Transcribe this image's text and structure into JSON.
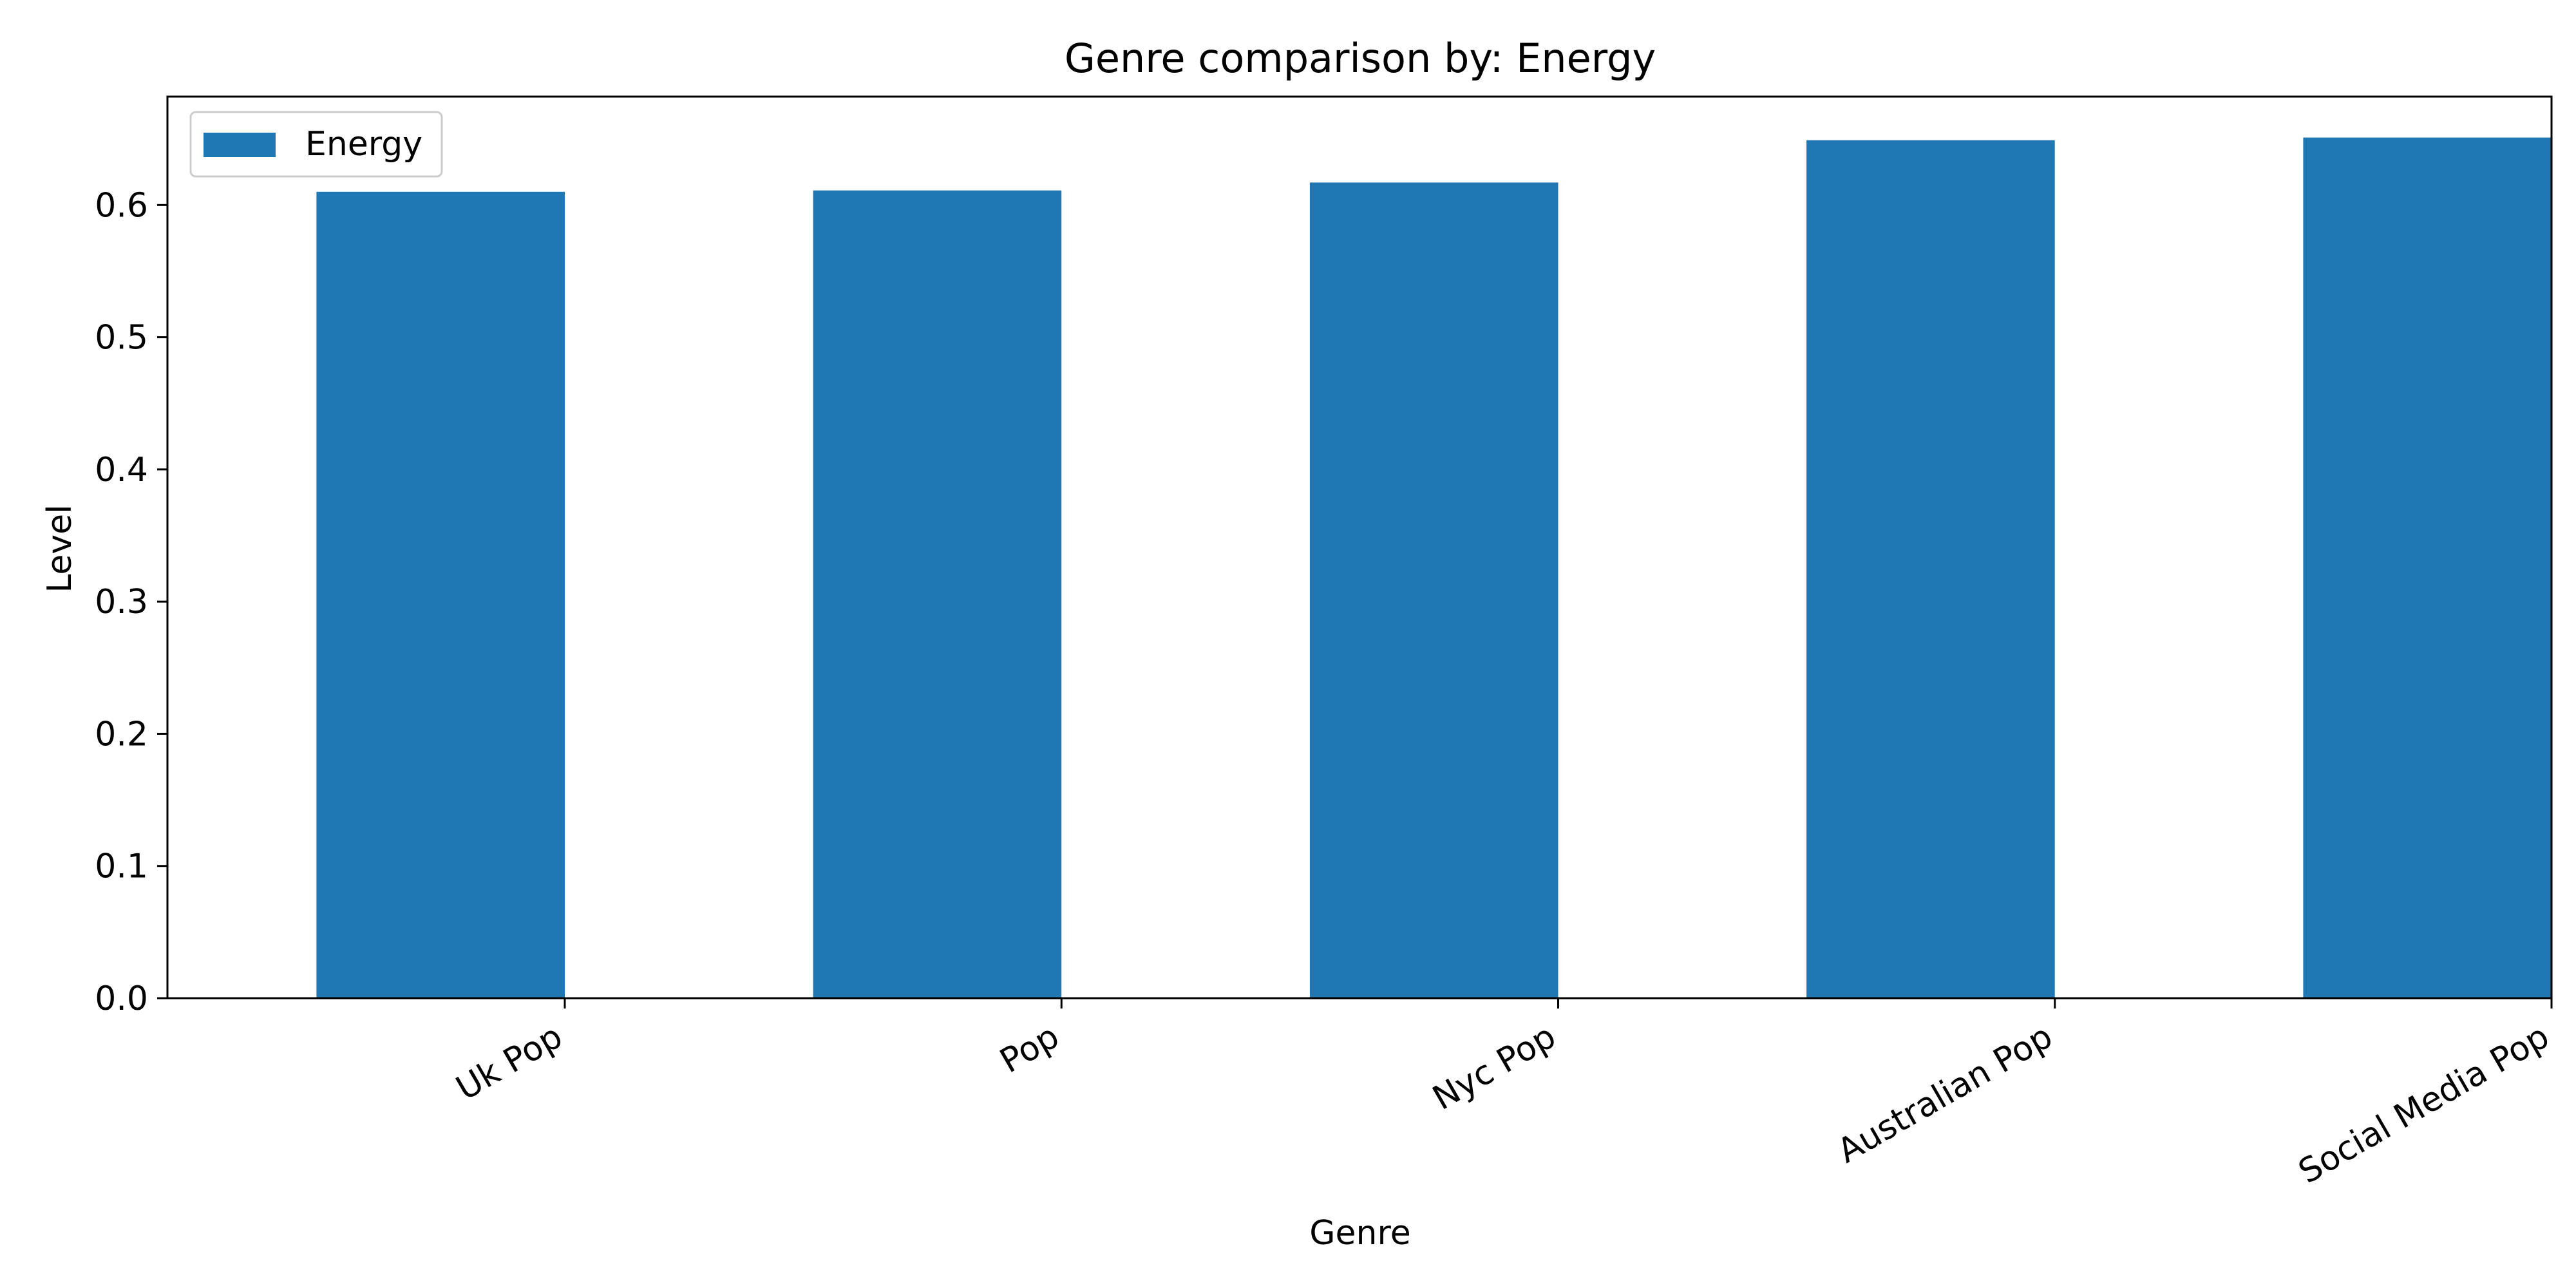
{
  "chart_data": {
    "type": "bar",
    "title": "Genre comparison by: Energy",
    "xlabel": "Genre",
    "ylabel": "Level",
    "categories": [
      "Uk Pop",
      "Pop",
      "Nyc Pop",
      "Australian Pop",
      "Social Media Pop"
    ],
    "series": [
      {
        "name": "Energy",
        "values": [
          0.61,
          0.611,
          0.617,
          0.649,
          0.651
        ],
        "color": "#1f77b4"
      }
    ],
    "ylim": [
      0,
      0.682
    ],
    "yticks": [
      0.0,
      0.1,
      0.2,
      0.3,
      0.4,
      0.5,
      0.6
    ],
    "ytick_labels": [
      "0.0",
      "0.1",
      "0.2",
      "0.3",
      "0.4",
      "0.5",
      "0.6"
    ],
    "grid": false,
    "legend_position": "top-left",
    "xtick_rotation": -30
  }
}
